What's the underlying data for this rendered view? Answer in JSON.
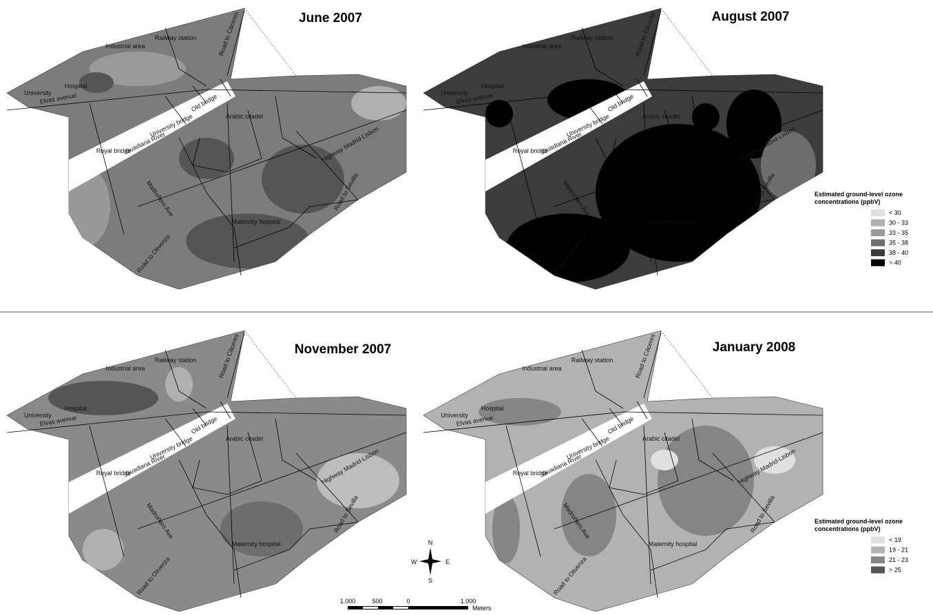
{
  "maps": [
    {
      "title": "June 2007",
      "base_color": "#7c7c7c"
    },
    {
      "title": "August 2007",
      "base_color": "#3c3c3c"
    },
    {
      "title": "November 2007",
      "base_color": "#8a8a8a"
    },
    {
      "title": "January 2008",
      "base_color": "#b2b2b2"
    }
  ],
  "place_labels": [
    "Industrial area",
    "Railway station",
    "Road to Cáceres",
    "University",
    "Hospital",
    "Elvas avenue",
    "Old bridge",
    "University bridge",
    "Guadiana River",
    "Royal bridge",
    "Arabic citadel",
    "Highway Madrid-Lisbon",
    "Road to Sevilla",
    "Madroñero Ave",
    "Maternity hospital",
    "Road to Olivenza"
  ],
  "legends": [
    {
      "title_lines": [
        "Estimated ground-level ozone",
        "concentrations (ppbV)"
      ],
      "items": [
        {
          "label": "< 30",
          "color": "#e0e0e0"
        },
        {
          "label": "30 - 33",
          "color": "#b0b0b0"
        },
        {
          "label": "33 - 35",
          "color": "#999999"
        },
        {
          "label": "35 - 38",
          "color": "#6e6e6e"
        },
        {
          "label": "38 - 40",
          "color": "#3c3c3c"
        },
        {
          "label": "> 40",
          "color": "#000000"
        }
      ]
    },
    {
      "title_lines": [
        "Estimated ground-level ozone",
        "concentrations (ppbV)"
      ],
      "items": [
        {
          "label": "< 19",
          "color": "#e0e0e0"
        },
        {
          "label": "19 - 21",
          "color": "#b2b2b2"
        },
        {
          "label": "21 - 23",
          "color": "#858585"
        },
        {
          "label": "> 25",
          "color": "#555555"
        }
      ]
    }
  ],
  "compass": {
    "n": "N",
    "s": "S",
    "e": "E",
    "w": "W"
  },
  "scale_bar": {
    "labels": [
      "1.000",
      "500",
      "0",
      "1.000"
    ],
    "unit": "Meters"
  }
}
